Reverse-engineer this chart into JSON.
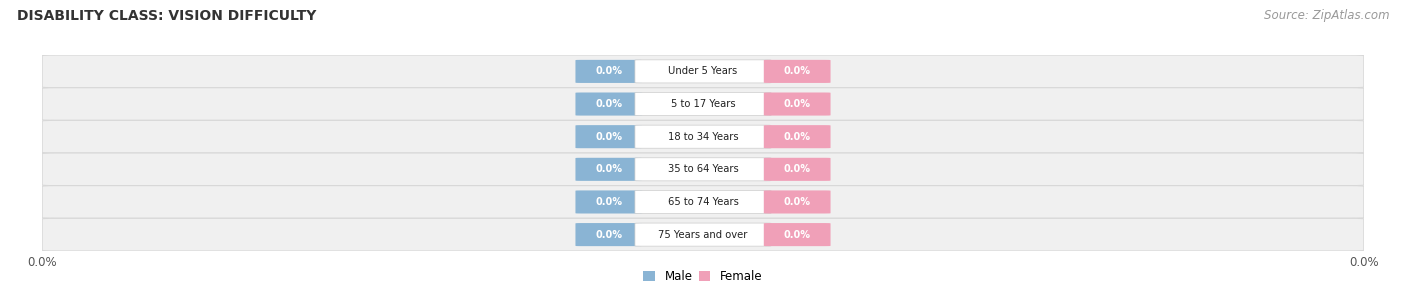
{
  "title": "DISABILITY CLASS: VISION DIFFICULTY",
  "source_text": "Source: ZipAtlas.com",
  "categories": [
    "Under 5 Years",
    "5 to 17 Years",
    "18 to 34 Years",
    "35 to 64 Years",
    "65 to 74 Years",
    "75 Years and over"
  ],
  "male_values": [
    0.0,
    0.0,
    0.0,
    0.0,
    0.0,
    0.0
  ],
  "female_values": [
    0.0,
    0.0,
    0.0,
    0.0,
    0.0,
    0.0
  ],
  "male_color": "#8ab4d4",
  "female_color": "#f0a0b8",
  "row_fill_color": "#f0f0f0",
  "row_edge_color": "#d8d8d8",
  "cat_label_bg": "#ffffff",
  "cat_label_edge": "#cccccc",
  "title_fontsize": 10,
  "source_fontsize": 8.5,
  "tick_label": "0.0%",
  "legend_male": "Male",
  "legend_female": "Female"
}
